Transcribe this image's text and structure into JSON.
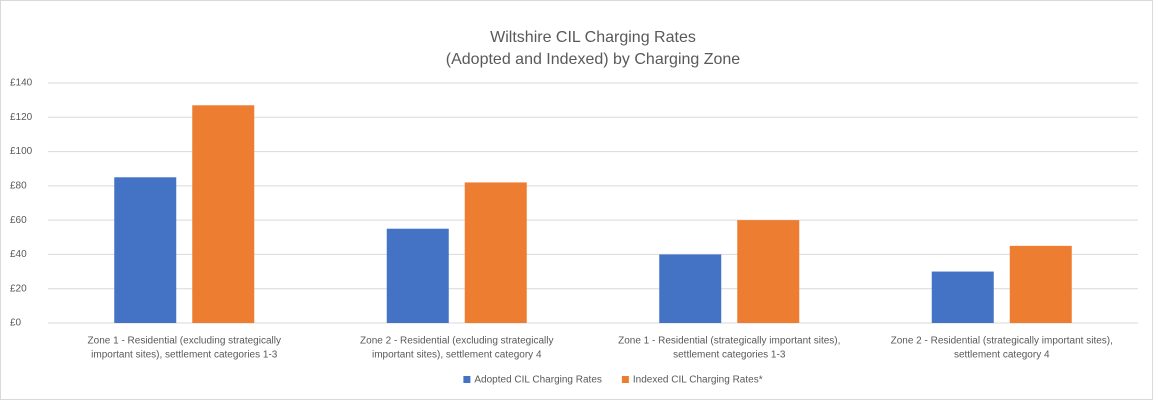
{
  "chart_data": {
    "type": "bar",
    "title": [
      "Wiltshire CIL Charging Rates",
      "(Adopted and Indexed) by Charging Zone"
    ],
    "categories": [
      [
        "Zone 1 - Residential (excluding strategically",
        "important sites), settlement categories 1-3"
      ],
      [
        "Zone 2 - Residential (excluding strategically",
        "important sites), settlement category 4"
      ],
      [
        "Zone 1 - Residential (strategically important sites),",
        "settlement categories 1-3"
      ],
      [
        "Zone 2 - Residential (strategically important sites),",
        "settlement category 4"
      ]
    ],
    "series": [
      {
        "name": "Adopted CIL Charging Rates",
        "color": "#4472c4",
        "values": [
          85,
          55,
          40,
          30
        ]
      },
      {
        "name": "Indexed CIL Charging Rates*",
        "color": "#ed7d31",
        "values": [
          127,
          82,
          60,
          45
        ]
      }
    ],
    "ylim": [
      0,
      140
    ],
    "yticks": [
      {
        "value": 0,
        "label": "£0"
      },
      {
        "value": 20,
        "label": "£20"
      },
      {
        "value": 40,
        "label": "£40"
      },
      {
        "value": 60,
        "label": "£60"
      },
      {
        "value": 80,
        "label": "£80"
      },
      {
        "value": 100,
        "label": "£100"
      },
      {
        "value": 120,
        "label": "£120"
      },
      {
        "value": 140,
        "label": "£140"
      }
    ],
    "grid": true,
    "legend": "bottom"
  }
}
